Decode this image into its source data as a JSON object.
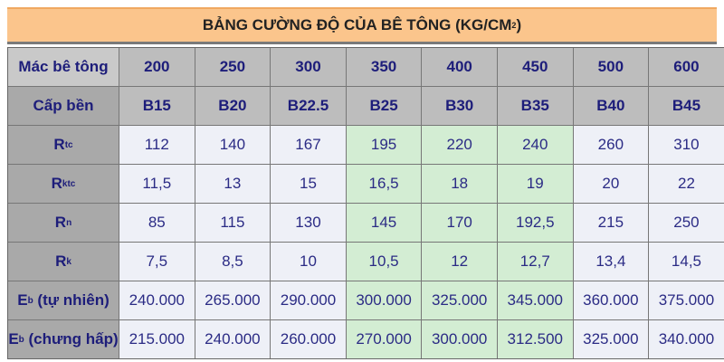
{
  "title": {
    "text": "BẢNG CƯỜNG ĐỘ CỦA BÊ TÔNG   (KG/CM",
    "sup": "2",
    "close": ")"
  },
  "colors": {
    "header": "#bdbdbd",
    "label": "#a9a9a9",
    "cell": "#eef0f7",
    "highlight": "#d3edd3",
    "title_bg": "#fbc58c",
    "text": "#2b2b85"
  },
  "highlight_columns": [
    "350",
    "400",
    "450"
  ],
  "header_rows": [
    {
      "label": "Mác bê tông",
      "values": [
        "200",
        "250",
        "300",
        "350",
        "400",
        "450",
        "500",
        "600"
      ]
    },
    {
      "label": "Cấp bền",
      "values": [
        "B15",
        "B20",
        "B22.5",
        "B25",
        "B30",
        "B35",
        "B40",
        "B45"
      ]
    }
  ],
  "rows": [
    {
      "label": "R",
      "sub": "tc",
      "suffix": "",
      "values": [
        "112",
        "140",
        "167",
        "195",
        "220",
        "240",
        "260",
        "310"
      ]
    },
    {
      "label": "R",
      "sub": "ktc",
      "suffix": "",
      "values": [
        "11,5",
        "13",
        "15",
        "16,5",
        "18",
        "19",
        "20",
        "22"
      ]
    },
    {
      "label": "R",
      "sub": "n",
      "suffix": "",
      "values": [
        "85",
        "115",
        "130",
        "145",
        "170",
        "192,5",
        "215",
        "250"
      ]
    },
    {
      "label": "R",
      "sub": "k",
      "suffix": "",
      "values": [
        "7,5",
        "8,5",
        "10",
        "10,5",
        "12",
        "12,7",
        "13,4",
        "14,5"
      ]
    },
    {
      "label": "E",
      "sub": "b",
      "suffix": " (tự nhiên)",
      "values": [
        "240.000",
        "265.000",
        "290.000",
        "300.000",
        "325.000",
        "345.000",
        "360.000",
        "375.000"
      ]
    },
    {
      "label": "E",
      "sub": "b",
      "suffix": " (chưng hấp)",
      "values": [
        "215.000",
        "240.000",
        "260.000",
        "270.000",
        "300.000",
        "312.500",
        "325.000",
        "340.000"
      ]
    }
  ]
}
